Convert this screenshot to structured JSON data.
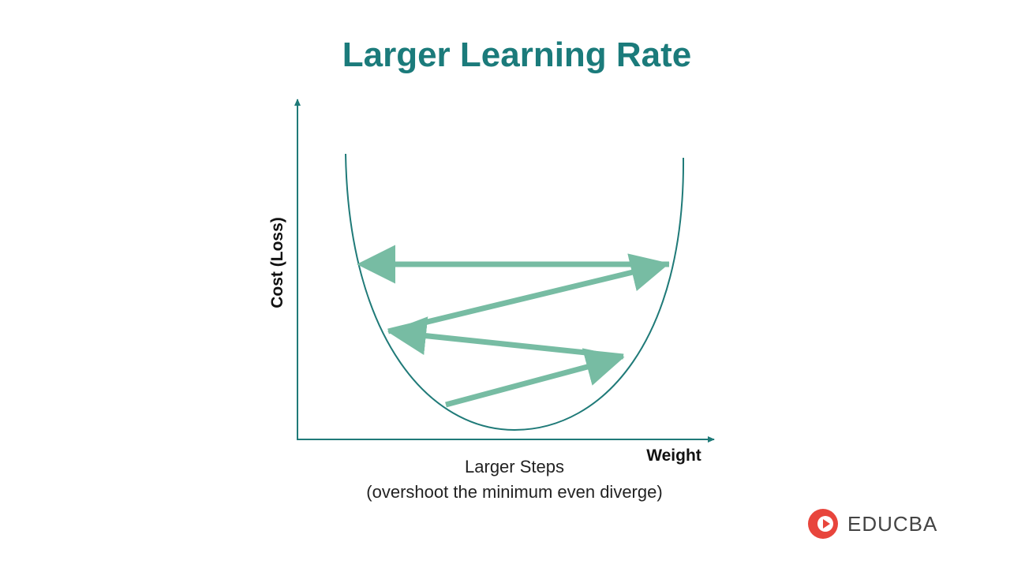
{
  "title": "Larger Learning Rate",
  "axes": {
    "y_label": "Cost (Loss)",
    "x_label": "Weight"
  },
  "caption": [
    "Larger Steps",
    "(overshoot the minimum even diverge)"
  ],
  "logo": "EDUCBA"
}
